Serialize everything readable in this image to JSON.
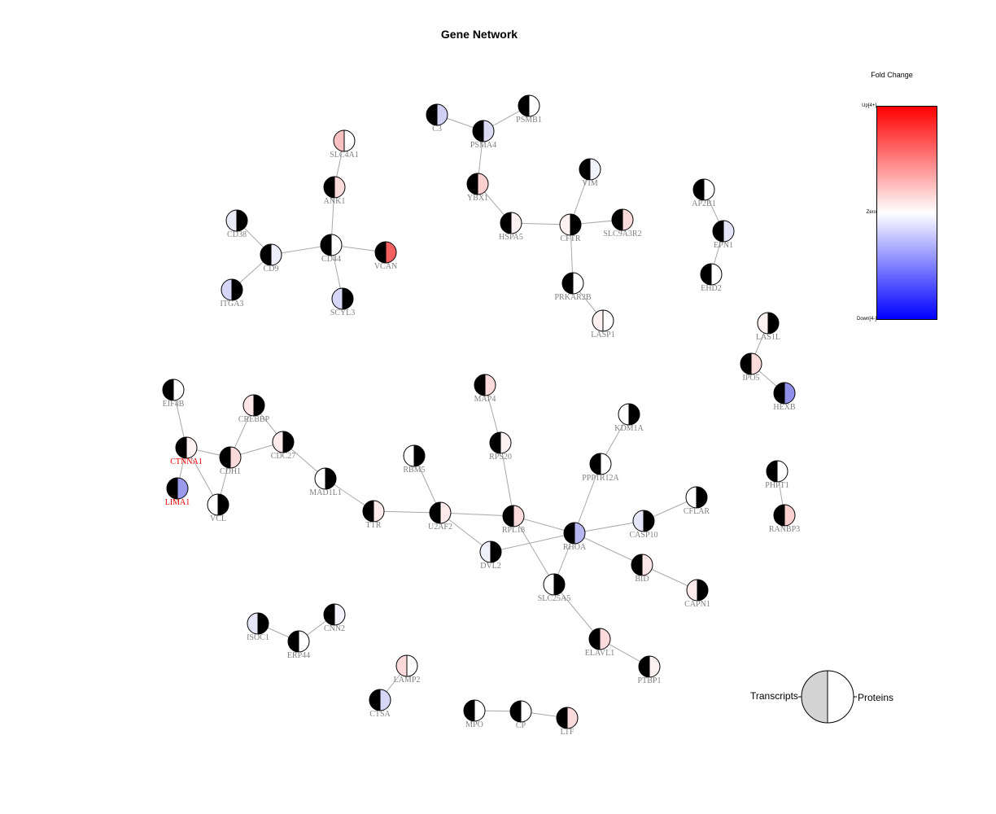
{
  "title": "Gene Network",
  "legend": {
    "title": "Fold Change",
    "ticks": {
      "up": "Up[4+]",
      "zero": "Zero",
      "down": "Down[4-]"
    },
    "gradient": [
      "#ff0000",
      "#ffffff",
      "#0000ff"
    ],
    "pie_left_label": "Transcripts",
    "pie_right_label": "Proteins",
    "pie_left_color": "#d3d3d3",
    "pie_right_color": "#ffffff"
  },
  "label_colors": {
    "normal": "#808080",
    "highlight": "#ee0000"
  },
  "nodes": [
    {
      "id": "SLC4A1",
      "label": "SLC4A1",
      "left": "#f8c0c0",
      "right": "#ffffff"
    },
    {
      "id": "ANK1",
      "label": "ANK1",
      "left": "#000000",
      "right": "#fbdada"
    },
    {
      "id": "CD38",
      "label": "CD38",
      "left": "#eaeaf9",
      "right": "#000000"
    },
    {
      "id": "CD9",
      "label": "CD9",
      "left": "#000000",
      "right": "#eeeefc"
    },
    {
      "id": "CD44",
      "label": "CD44",
      "left": "#000000",
      "right": "#ffffff"
    },
    {
      "id": "VCAN",
      "label": "VCAN",
      "left": "#000000",
      "right": "#f26060"
    },
    {
      "id": "ITGA3",
      "label": "ITGA3",
      "left": "#d6d6f6",
      "right": "#000000"
    },
    {
      "id": "SCYL3",
      "label": "SCYL3",
      "left": "#d6d6f6",
      "right": "#000000"
    },
    {
      "id": "C3",
      "label": "C3",
      "left": "#000000",
      "right": "#d0d0f4"
    },
    {
      "id": "PSMA4",
      "label": "PSMA4",
      "left": "#000000",
      "right": "#dcdcf6"
    },
    {
      "id": "PSMB1",
      "label": "PSMB1",
      "left": "#000000",
      "right": "#ffffff"
    },
    {
      "id": "YBX1",
      "label": "YBX1",
      "left": "#000000",
      "right": "#fad0d0"
    },
    {
      "id": "HSPA5",
      "label": "HSPA5",
      "left": "#000000",
      "right": "#fdf1f1"
    },
    {
      "id": "CFTR",
      "label": "CFTR",
      "left": "#fdf1f1",
      "right": "#000000"
    },
    {
      "id": "VIM",
      "label": "VIM",
      "left": "#000000",
      "right": "#f3f3fd"
    },
    {
      "id": "SLC9A3R2",
      "label": "SLC9A3R2",
      "left": "#000000",
      "right": "#fadada"
    },
    {
      "id": "PRKAR2B",
      "label": "PRKAR2B",
      "left": "#000000",
      "right": "#ffffff"
    },
    {
      "id": "LASP1",
      "label": "LASP1",
      "left": "#fdf1f1",
      "right": "#ffffff"
    },
    {
      "id": "AP2B1",
      "label": "AP2B1",
      "left": "#000000",
      "right": "#ffffff"
    },
    {
      "id": "EPN1",
      "label": "EPN1",
      "left": "#000000",
      "right": "#e6e6fb"
    },
    {
      "id": "EHD2",
      "label": "EHD2",
      "left": "#000000",
      "right": "#ffffff"
    },
    {
      "id": "LAS1L",
      "label": "LAS1L",
      "left": "#fdf1f1",
      "right": "#000000"
    },
    {
      "id": "IPO5",
      "label": "IPO5",
      "left": "#000000",
      "right": "#fadada"
    },
    {
      "id": "HEXB",
      "label": "HEXB",
      "left": "#000000",
      "right": "#9090ea"
    },
    {
      "id": "PHPT1",
      "label": "PHPT1",
      "left": "#000000",
      "right": "#ffffff"
    },
    {
      "id": "RANBP3",
      "label": "RANBP3",
      "left": "#000000",
      "right": "#fad0d0"
    },
    {
      "id": "EIF4B",
      "label": "EIF4B",
      "left": "#000000",
      "right": "#ffffff"
    },
    {
      "id": "CREBBP",
      "label": "CREBBP",
      "left": "#fde6e6",
      "right": "#000000"
    },
    {
      "id": "CTNNA1",
      "label": "CTNNA1",
      "left": "#000000",
      "right": "#fdf1f1",
      "highlight": true
    },
    {
      "id": "CDH1",
      "label": "CDH1",
      "left": "#000000",
      "right": "#fadada"
    },
    {
      "id": "CDC27",
      "label": "CDC27",
      "left": "#fdeaea",
      "right": "#000000"
    },
    {
      "id": "LIMA1",
      "label": "LIMA1",
      "left": "#000000",
      "right": "#9a9aea",
      "highlight": true
    },
    {
      "id": "VCL",
      "label": "VCL",
      "left": "#ffffff",
      "right": "#000000"
    },
    {
      "id": "MAD1L1",
      "label": "MAD1L1",
      "left": "#ffffff",
      "right": "#000000"
    },
    {
      "id": "TTR",
      "label": "TTR",
      "left": "#000000",
      "right": "#fdeaea"
    },
    {
      "id": "RBM5",
      "label": "RBM5",
      "left": "#ffffff",
      "right": "#000000"
    },
    {
      "id": "U2AF2",
      "label": "U2AF2",
      "left": "#000000",
      "right": "#fdeaea"
    },
    {
      "id": "MAP4",
      "label": "MAP4",
      "left": "#000000",
      "right": "#fadada"
    },
    {
      "id": "RPS20",
      "label": "RPS20",
      "left": "#000000",
      "right": "#fdf1f1"
    },
    {
      "id": "RPL18",
      "label": "RPL18",
      "left": "#000000",
      "right": "#fadada"
    },
    {
      "id": "DVL2",
      "label": "DVL2",
      "left": "#f0f0fd",
      "right": "#000000"
    },
    {
      "id": "KDM1A",
      "label": "KDM1A",
      "left": "#ffffff",
      "right": "#000000"
    },
    {
      "id": "PPP1R12A",
      "label": "PPP1R12A",
      "left": "#000000",
      "right": "#ffffff"
    },
    {
      "id": "RHOA",
      "label": "RHOA",
      "left": "#000000",
      "right": "#b6b6f0"
    },
    {
      "id": "CASP10",
      "label": "CASP10",
      "left": "#e6e6fa",
      "right": "#000000"
    },
    {
      "id": "CFLAR",
      "label": "CFLAR",
      "left": "#ffffff",
      "right": "#000000"
    },
    {
      "id": "BID",
      "label": "BID",
      "left": "#000000",
      "right": "#fde6e6"
    },
    {
      "id": "CAPN1",
      "label": "CAPN1",
      "left": "#fdeaea",
      "right": "#000000"
    },
    {
      "id": "SLC25A5",
      "label": "SLC25A5",
      "left": "#ffffff",
      "right": "#000000"
    },
    {
      "id": "ELAVL1",
      "label": "ELAVL1",
      "left": "#000000",
      "right": "#fadada"
    },
    {
      "id": "PTBP1",
      "label": "PTBP1",
      "left": "#000000",
      "right": "#fdf1f1"
    },
    {
      "id": "ISOC1",
      "label": "ISOC1",
      "left": "#e6e6fa",
      "right": "#000000"
    },
    {
      "id": "CNN2",
      "label": "CNN2",
      "left": "#000000",
      "right": "#f3f3fd"
    },
    {
      "id": "ERP44",
      "label": "ERP44",
      "left": "#000000",
      "right": "#ffffff"
    },
    {
      "id": "LAMP2",
      "label": "LAMP2",
      "left": "#fddada",
      "right": "#ffffff"
    },
    {
      "id": "CTSA",
      "label": "CTSA",
      "left": "#000000",
      "right": "#d6d6f6"
    },
    {
      "id": "MPO",
      "label": "MPO",
      "left": "#000000",
      "right": "#ffffff"
    },
    {
      "id": "CP",
      "label": "CP",
      "left": "#000000",
      "right": "#ffffff"
    },
    {
      "id": "LTF",
      "label": "LTF",
      "left": "#000000",
      "right": "#fadada"
    }
  ],
  "edges": [
    [
      "SLC4A1",
      "ANK1"
    ],
    [
      "ANK1",
      "CD44"
    ],
    [
      "CD44",
      "VCAN"
    ],
    [
      "CD44",
      "SCYL3"
    ],
    [
      "CD44",
      "CD9"
    ],
    [
      "CD9",
      "CD38"
    ],
    [
      "CD9",
      "ITGA3"
    ],
    [
      "C3",
      "PSMA4"
    ],
    [
      "PSMA4",
      "PSMB1"
    ],
    [
      "PSMA4",
      "YBX1"
    ],
    [
      "YBX1",
      "HSPA5"
    ],
    [
      "HSPA5",
      "CFTR"
    ],
    [
      "CFTR",
      "VIM"
    ],
    [
      "CFTR",
      "SLC9A3R2"
    ],
    [
      "CFTR",
      "PRKAR2B"
    ],
    [
      "PRKAR2B",
      "LASP1"
    ],
    [
      "AP2B1",
      "EPN1"
    ],
    [
      "EPN1",
      "EHD2"
    ],
    [
      "LAS1L",
      "IPO5"
    ],
    [
      "IPO5",
      "HEXB"
    ],
    [
      "PHPT1",
      "RANBP3"
    ],
    [
      "EIF4B",
      "CTNNA1"
    ],
    [
      "CTNNA1",
      "CDH1"
    ],
    [
      "CTNNA1",
      "LIMA1"
    ],
    [
      "CTNNA1",
      "VCL"
    ],
    [
      "CDH1",
      "CREBBP"
    ],
    [
      "CDH1",
      "CDC27"
    ],
    [
      "CDH1",
      "VCL"
    ],
    [
      "CREBBP",
      "CDC27"
    ],
    [
      "CDC27",
      "MAD1L1"
    ],
    [
      "MAD1L1",
      "TTR"
    ],
    [
      "TTR",
      "U2AF2"
    ],
    [
      "U2AF2",
      "RBM5"
    ],
    [
      "U2AF2",
      "RPL18"
    ],
    [
      "U2AF2",
      "DVL2"
    ],
    [
      "MAP4",
      "RPS20"
    ],
    [
      "RPS20",
      "RPL18"
    ],
    [
      "RPL18",
      "RHOA"
    ],
    [
      "RPL18",
      "SLC25A5"
    ],
    [
      "DVL2",
      "RHOA"
    ],
    [
      "KDM1A",
      "PPP1R12A"
    ],
    [
      "PPP1R12A",
      "RHOA"
    ],
    [
      "RHOA",
      "CASP10"
    ],
    [
      "RHOA",
      "BID"
    ],
    [
      "RHOA",
      "SLC25A5"
    ],
    [
      "CASP10",
      "CFLAR"
    ],
    [
      "BID",
      "CAPN1"
    ],
    [
      "SLC25A5",
      "ELAVL1"
    ],
    [
      "ELAVL1",
      "PTBP1"
    ],
    [
      "ISOC1",
      "ERP44"
    ],
    [
      "ERP44",
      "CNN2"
    ],
    [
      "LAMP2",
      "CTSA"
    ],
    [
      "MPO",
      "CP"
    ],
    [
      "CP",
      "LTF"
    ]
  ]
}
